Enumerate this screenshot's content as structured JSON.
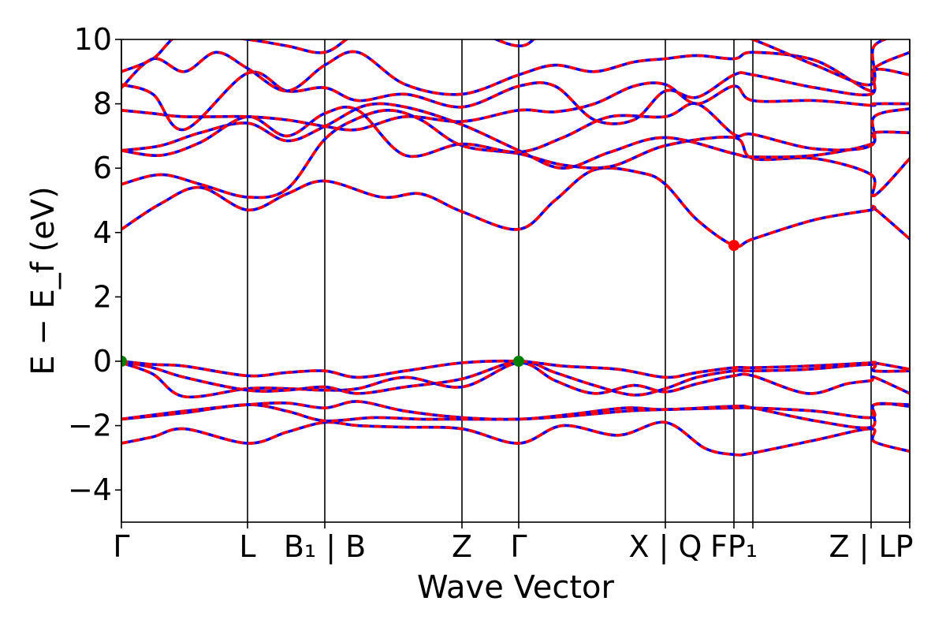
{
  "chart_data": {
    "type": "line",
    "xlabel": "Wave Vector",
    "ylabel": "E − E_f (eV)",
    "ylim": [
      -5,
      10
    ],
    "yticks": [
      "−4",
      "−2",
      "0",
      "2",
      "4",
      "6",
      "8",
      "10"
    ],
    "ytick_values": [
      -4,
      -2,
      0,
      2,
      4,
      6,
      8,
      10
    ],
    "kpath": [
      {
        "label": "Γ",
        "k": 0.0
      },
      {
        "label": "L",
        "k": 0.16
      },
      {
        "label": "B₁ | B",
        "k": 0.258
      },
      {
        "label": "Z",
        "k": 0.432
      },
      {
        "label": "Γ",
        "k": 0.504
      },
      {
        "label": "X | Q",
        "k": 0.69
      },
      {
        "label": "FP₁",
        "k": 0.777
      },
      {
        "label": "",
        "k": 0.801
      },
      {
        "label": "Z | LP",
        "k": 0.951
      },
      {
        "label": "",
        "k": 1.0
      }
    ],
    "series_colors": {
      "spin_up": "#ff0000",
      "spin_down": "#0000ff"
    },
    "markers": [
      {
        "role": "vbm",
        "k": 0.0,
        "E": 0.0,
        "color": "#008000"
      },
      {
        "role": "vbm",
        "k": 0.504,
        "E": 0.0,
        "color": "#008000"
      },
      {
        "role": "cbm",
        "k": 0.777,
        "E": 3.6,
        "color": "#ff0000"
      }
    ],
    "bands": [
      [
        [
          0.0,
          -2.55
        ],
        [
          0.04,
          -2.35
        ],
        [
          0.08,
          -2.1
        ],
        [
          0.16,
          -2.55
        ],
        [
          0.21,
          -2.2
        ],
        [
          0.258,
          -1.9
        ],
        [
          0.3,
          -2.0
        ],
        [
          0.36,
          -2.05
        ],
        [
          0.432,
          -2.1
        ],
        [
          0.504,
          -2.55
        ],
        [
          0.56,
          -2.0
        ],
        [
          0.63,
          -2.3
        ],
        [
          0.69,
          -1.9
        ],
        [
          0.74,
          -2.7
        ],
        [
          0.777,
          -2.9
        ],
        [
          0.801,
          -2.85
        ],
        [
          0.88,
          -2.45
        ],
        [
          0.951,
          -2.1
        ],
        [
          0.955,
          -2.5
        ],
        [
          1.0,
          -2.8
        ]
      ],
      [
        [
          0.0,
          -1.8
        ],
        [
          0.08,
          -1.6
        ],
        [
          0.16,
          -1.35
        ],
        [
          0.21,
          -1.55
        ],
        [
          0.258,
          -1.85
        ],
        [
          0.32,
          -1.75
        ],
        [
          0.38,
          -1.8
        ],
        [
          0.432,
          -1.8
        ],
        [
          0.504,
          -1.8
        ],
        [
          0.57,
          -1.7
        ],
        [
          0.64,
          -1.55
        ],
        [
          0.69,
          -1.5
        ],
        [
          0.777,
          -1.45
        ],
        [
          0.801,
          -1.45
        ],
        [
          0.88,
          -1.55
        ],
        [
          0.951,
          -1.75
        ],
        [
          0.955,
          -1.35
        ],
        [
          1.0,
          -1.35
        ]
      ],
      [
        [
          0.0,
          -1.8
        ],
        [
          0.08,
          -1.55
        ],
        [
          0.16,
          -1.35
        ],
        [
          0.21,
          -1.3
        ],
        [
          0.258,
          -1.45
        ],
        [
          0.3,
          -1.25
        ],
        [
          0.36,
          -1.55
        ],
        [
          0.432,
          -1.75
        ],
        [
          0.504,
          -1.8
        ],
        [
          0.57,
          -1.65
        ],
        [
          0.64,
          -1.45
        ],
        [
          0.69,
          -1.5
        ],
        [
          0.777,
          -1.4
        ],
        [
          0.801,
          -1.45
        ],
        [
          0.88,
          -1.85
        ],
        [
          0.951,
          -2.05
        ],
        [
          0.955,
          -1.35
        ],
        [
          1.0,
          -1.4
        ]
      ],
      [
        [
          0.0,
          -0.05
        ],
        [
          0.04,
          -0.4
        ],
        [
          0.08,
          -1.1
        ],
        [
          0.16,
          -0.85
        ],
        [
          0.21,
          -0.85
        ],
        [
          0.258,
          -0.9
        ],
        [
          0.3,
          -0.85
        ],
        [
          0.36,
          -0.5
        ],
        [
          0.432,
          -0.8
        ],
        [
          0.504,
          -0.05
        ],
        [
          0.55,
          -0.6
        ],
        [
          0.6,
          -1.0
        ],
        [
          0.65,
          -0.75
        ],
        [
          0.69,
          -0.95
        ],
        [
          0.73,
          -0.7
        ],
        [
          0.777,
          -0.45
        ],
        [
          0.801,
          -0.45
        ],
        [
          0.87,
          -1.0
        ],
        [
          0.92,
          -0.7
        ],
        [
          0.951,
          -0.6
        ],
        [
          0.955,
          -0.5
        ],
        [
          1.0,
          -1.0
        ]
      ],
      [
        [
          0.0,
          0.0
        ],
        [
          0.04,
          -0.2
        ],
        [
          0.08,
          -0.5
        ],
        [
          0.16,
          -0.9
        ],
        [
          0.21,
          -0.9
        ],
        [
          0.258,
          -0.8
        ],
        [
          0.3,
          -1.0
        ],
        [
          0.36,
          -0.8
        ],
        [
          0.432,
          -0.55
        ],
        [
          0.504,
          0.0
        ],
        [
          0.55,
          -0.35
        ],
        [
          0.6,
          -0.75
        ],
        [
          0.65,
          -1.05
        ],
        [
          0.69,
          -0.85
        ],
        [
          0.73,
          -0.5
        ],
        [
          0.777,
          -0.3
        ],
        [
          0.801,
          -0.3
        ],
        [
          0.87,
          -0.25
        ],
        [
          0.951,
          -0.1
        ],
        [
          0.955,
          -0.3
        ],
        [
          1.0,
          -0.3
        ]
      ],
      [
        [
          0.0,
          0.0
        ],
        [
          0.04,
          -0.1
        ],
        [
          0.08,
          -0.15
        ],
        [
          0.16,
          -0.45
        ],
        [
          0.21,
          -0.35
        ],
        [
          0.258,
          -0.3
        ],
        [
          0.3,
          -0.5
        ],
        [
          0.36,
          -0.3
        ],
        [
          0.432,
          -0.05
        ],
        [
          0.504,
          0.0
        ],
        [
          0.56,
          -0.15
        ],
        [
          0.63,
          -0.25
        ],
        [
          0.69,
          -0.5
        ],
        [
          0.73,
          -0.35
        ],
        [
          0.777,
          -0.2
        ],
        [
          0.801,
          -0.2
        ],
        [
          0.87,
          -0.15
        ],
        [
          0.951,
          -0.05
        ],
        [
          0.955,
          -0.05
        ],
        [
          1.0,
          -0.25
        ]
      ],
      [
        [
          0.0,
          4.1
        ],
        [
          0.05,
          4.9
        ],
        [
          0.1,
          5.4
        ],
        [
          0.16,
          4.7
        ],
        [
          0.21,
          5.2
        ],
        [
          0.258,
          5.6
        ],
        [
          0.33,
          5.1
        ],
        [
          0.38,
          5.2
        ],
        [
          0.432,
          4.65
        ],
        [
          0.504,
          4.1
        ],
        [
          0.55,
          5.0
        ],
        [
          0.6,
          5.95
        ],
        [
          0.66,
          5.85
        ],
        [
          0.69,
          5.5
        ],
        [
          0.73,
          4.4
        ],
        [
          0.777,
          3.6
        ],
        [
          0.801,
          3.8
        ],
        [
          0.88,
          4.4
        ],
        [
          0.951,
          4.7
        ],
        [
          0.955,
          4.75
        ],
        [
          1.0,
          3.8
        ]
      ],
      [
        [
          0.0,
          5.5
        ],
        [
          0.05,
          5.8
        ],
        [
          0.1,
          5.5
        ],
        [
          0.16,
          5.1
        ],
        [
          0.21,
          5.35
        ],
        [
          0.258,
          6.9
        ],
        [
          0.3,
          7.55
        ],
        [
          0.34,
          7.8
        ],
        [
          0.38,
          7.5
        ],
        [
          0.432,
          6.7
        ],
        [
          0.504,
          6.45
        ],
        [
          0.56,
          6.1
        ],
        [
          0.62,
          6.05
        ],
        [
          0.69,
          6.7
        ],
        [
          0.777,
          6.95
        ],
        [
          0.801,
          6.3
        ],
        [
          0.88,
          6.3
        ],
        [
          0.951,
          5.8
        ],
        [
          0.955,
          5.15
        ],
        [
          1.0,
          6.3
        ]
      ],
      [
        [
          0.0,
          6.55
        ],
        [
          0.05,
          6.7
        ],
        [
          0.1,
          7.1
        ],
        [
          0.16,
          7.4
        ],
        [
          0.21,
          6.85
        ],
        [
          0.258,
          7.3
        ],
        [
          0.31,
          7.95
        ],
        [
          0.36,
          7.9
        ],
        [
          0.432,
          7.35
        ],
        [
          0.504,
          6.55
        ],
        [
          0.56,
          6.0
        ],
        [
          0.62,
          6.5
        ],
        [
          0.69,
          6.95
        ],
        [
          0.777,
          6.45
        ],
        [
          0.801,
          6.35
        ],
        [
          0.88,
          6.4
        ],
        [
          0.951,
          6.75
        ],
        [
          0.955,
          7.1
        ],
        [
          1.0,
          7.1
        ]
      ],
      [
        [
          0.0,
          6.55
        ],
        [
          0.05,
          6.4
        ],
        [
          0.1,
          6.8
        ],
        [
          0.16,
          7.6
        ],
        [
          0.21,
          7.0
        ],
        [
          0.258,
          7.7
        ],
        [
          0.3,
          7.8
        ],
        [
          0.36,
          6.4
        ],
        [
          0.432,
          6.75
        ],
        [
          0.504,
          6.5
        ],
        [
          0.56,
          6.95
        ],
        [
          0.62,
          7.6
        ],
        [
          0.69,
          7.6
        ],
        [
          0.73,
          8.0
        ],
        [
          0.777,
          7.05
        ],
        [
          0.801,
          7.05
        ],
        [
          0.88,
          6.6
        ],
        [
          0.951,
          6.7
        ],
        [
          0.955,
          7.6
        ],
        [
          1.0,
          7.85
        ]
      ],
      [
        [
          0.0,
          7.8
        ],
        [
          0.04,
          7.7
        ],
        [
          0.08,
          7.6
        ],
        [
          0.16,
          7.6
        ],
        [
          0.21,
          7.5
        ],
        [
          0.258,
          7.3
        ],
        [
          0.3,
          7.2
        ],
        [
          0.36,
          7.6
        ],
        [
          0.432,
          7.45
        ],
        [
          0.504,
          7.8
        ],
        [
          0.55,
          7.75
        ],
        [
          0.6,
          8.0
        ],
        [
          0.65,
          8.55
        ],
        [
          0.69,
          8.6
        ],
        [
          0.73,
          8.0
        ],
        [
          0.777,
          8.55
        ],
        [
          0.801,
          8.1
        ],
        [
          0.88,
          8.1
        ],
        [
          0.951,
          7.95
        ],
        [
          0.955,
          8.0
        ],
        [
          1.0,
          8.0
        ]
      ],
      [
        [
          0.0,
          8.6
        ],
        [
          0.04,
          8.3
        ],
        [
          0.08,
          7.2
        ],
        [
          0.16,
          8.95
        ],
        [
          0.21,
          8.4
        ],
        [
          0.258,
          8.5
        ],
        [
          0.3,
          8.1
        ],
        [
          0.36,
          8.3
        ],
        [
          0.432,
          7.9
        ],
        [
          0.504,
          8.55
        ],
        [
          0.55,
          8.55
        ],
        [
          0.6,
          7.5
        ],
        [
          0.65,
          7.5
        ],
        [
          0.69,
          8.4
        ],
        [
          0.73,
          8.2
        ],
        [
          0.777,
          8.9
        ],
        [
          0.801,
          8.9
        ],
        [
          0.88,
          8.5
        ],
        [
          0.951,
          8.3
        ],
        [
          0.955,
          9.05
        ],
        [
          1.0,
          8.9
        ]
      ],
      [
        [
          0.0,
          8.5
        ],
        [
          0.04,
          9.4
        ],
        [
          0.08,
          9.0
        ],
        [
          0.12,
          9.6
        ],
        [
          0.16,
          9.1
        ],
        [
          0.21,
          8.4
        ],
        [
          0.258,
          9.2
        ],
        [
          0.3,
          9.6
        ],
        [
          0.36,
          8.6
        ],
        [
          0.432,
          8.3
        ],
        [
          0.504,
          8.9
        ],
        [
          0.55,
          9.2
        ],
        [
          0.6,
          9.0
        ],
        [
          0.65,
          9.3
        ],
        [
          0.69,
          9.4
        ],
        [
          0.73,
          9.5
        ],
        [
          0.777,
          9.4
        ],
        [
          0.801,
          9.6
        ],
        [
          0.88,
          9.35
        ],
        [
          0.951,
          8.4
        ],
        [
          0.955,
          9.1
        ],
        [
          1.0,
          9.6
        ]
      ],
      [
        [
          0.0,
          9.0
        ],
        [
          0.04,
          9.4
        ],
        [
          0.08,
          10.2
        ],
        [
          0.16,
          10.0
        ],
        [
          0.21,
          9.8
        ],
        [
          0.258,
          9.6
        ],
        [
          0.3,
          10.2
        ],
        [
          0.36,
          10.5
        ],
        [
          0.432,
          10.4
        ],
        [
          0.504,
          9.8
        ],
        [
          0.55,
          10.3
        ],
        [
          0.69,
          10.5
        ],
        [
          0.73,
          10.2
        ],
        [
          0.777,
          10.1
        ],
        [
          0.801,
          10.0
        ],
        [
          0.88,
          9.2
        ],
        [
          0.951,
          8.6
        ],
        [
          0.955,
          9.8
        ],
        [
          1.0,
          10.2
        ]
      ]
    ]
  }
}
